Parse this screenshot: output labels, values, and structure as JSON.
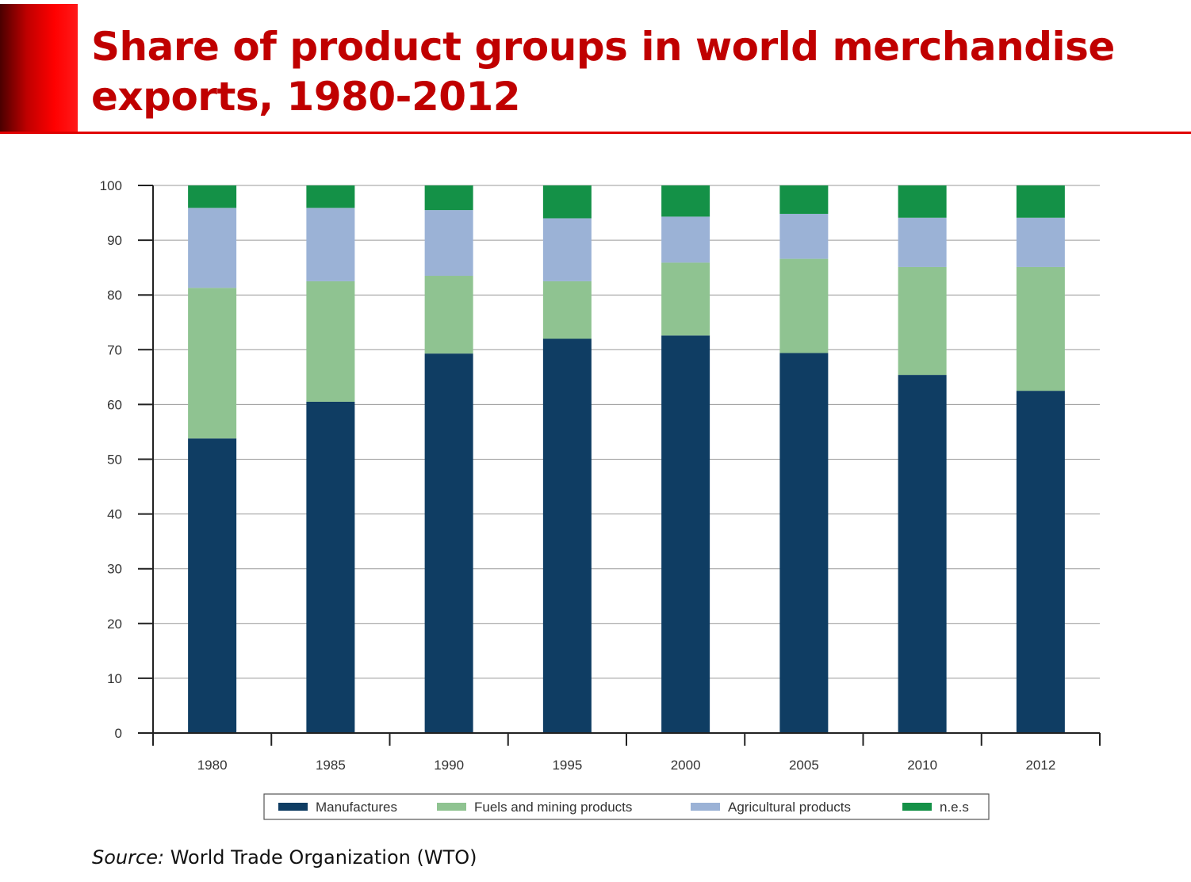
{
  "slide": {
    "title": "Share of product groups in world merchandise exports, 1980-2012",
    "source_label": "Source:",
    "source_text": "World Trade Organization (WTO)"
  },
  "colors": {
    "title": "#c00000",
    "Manufactures": "#0f3d63",
    "Fuels and mining products": "#8fc391",
    "Agricultural products": "#9bb2d6",
    "n.e.s": "#149147"
  },
  "chart_data": {
    "type": "bar",
    "stacked": true,
    "categories": [
      "1980",
      "1985",
      "1990",
      "1995",
      "2000",
      "2005",
      "2010",
      "2012"
    ],
    "series": [
      {
        "name": "Manufactures",
        "values": [
          53.8,
          60.5,
          69.3,
          72.0,
          72.6,
          69.4,
          65.4,
          62.5
        ]
      },
      {
        "name": "Fuels and mining products",
        "values": [
          27.5,
          22.0,
          14.2,
          10.5,
          13.3,
          17.2,
          19.7,
          22.6
        ]
      },
      {
        "name": "Agricultural products",
        "values": [
          14.6,
          13.4,
          12.0,
          11.5,
          8.4,
          8.2,
          9.0,
          9.0
        ]
      },
      {
        "name": "n.e.s",
        "values": [
          4.1,
          4.1,
          4.5,
          6.0,
          5.7,
          5.2,
          5.9,
          5.9
        ]
      }
    ],
    "ylim": [
      0,
      100
    ],
    "yticks": [
      "0",
      "10",
      "20",
      "30",
      "40",
      "50",
      "60",
      "70",
      "80",
      "90",
      "100"
    ],
    "xlabel": "",
    "ylabel": "",
    "grid": true,
    "legend": "bottom"
  }
}
